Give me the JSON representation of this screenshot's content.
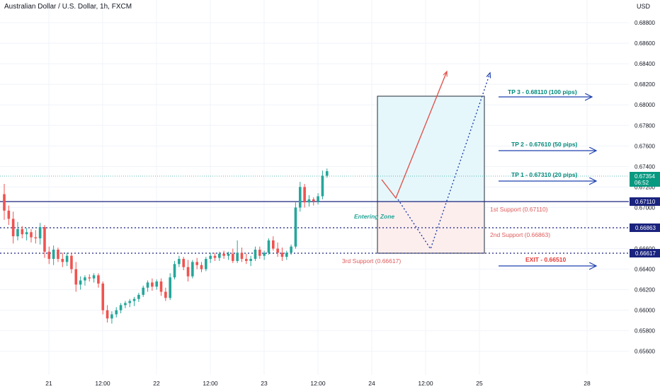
{
  "header": {
    "title": "Australian Dollar / U.S. Dollar, 1h, FXCM",
    "currency": "USD"
  },
  "colors": {
    "up": "#26a69a",
    "down": "#ef5350",
    "support_line": "#1a237e",
    "price_badge": "#089981",
    "level_badge": "#1a237e",
    "tp_text": "#00897b",
    "support_text": "#e05a5a",
    "exit_text": "#e53935",
    "arrow_blue": "#1e40af",
    "profit_zone": "#e6f7fb",
    "loss_zone": "#fdeeee"
  },
  "chart_data": {
    "type": "candlestick",
    "x_tick_labels": [
      "21",
      "12:00",
      "22",
      "12:00",
      "23",
      "12:00",
      "24",
      "12:00",
      "25",
      "28"
    ],
    "y_tick_labels": [
      "0.68800",
      "0.68600",
      "0.68400",
      "0.68200",
      "0.68000",
      "0.67800",
      "0.67600",
      "0.67400",
      "0.67200",
      "0.67000",
      "0.66800",
      "0.66600",
      "0.66400",
      "0.66200",
      "0.66000",
      "0.65800",
      "0.65600"
    ],
    "ylim": [
      0.6547,
      0.6897
    ],
    "current_price": "0.67354",
    "countdown": "06:52",
    "candles": [
      {
        "o": 0.6713,
        "h": 0.6723,
        "l": 0.6688,
        "c": 0.6697
      },
      {
        "o": 0.6697,
        "h": 0.6702,
        "l": 0.6683,
        "c": 0.6689
      },
      {
        "o": 0.6689,
        "h": 0.6696,
        "l": 0.6665,
        "c": 0.6672
      },
      {
        "o": 0.6672,
        "h": 0.6686,
        "l": 0.6668,
        "c": 0.6679
      },
      {
        "o": 0.6679,
        "h": 0.6682,
        "l": 0.667,
        "c": 0.6674
      },
      {
        "o": 0.6674,
        "h": 0.668,
        "l": 0.6668,
        "c": 0.6676
      },
      {
        "o": 0.6676,
        "h": 0.6679,
        "l": 0.6666,
        "c": 0.6671
      },
      {
        "o": 0.6671,
        "h": 0.6678,
        "l": 0.6665,
        "c": 0.667
      },
      {
        "o": 0.667,
        "h": 0.6685,
        "l": 0.6664,
        "c": 0.6681
      },
      {
        "o": 0.6681,
        "h": 0.6683,
        "l": 0.6651,
        "c": 0.6657
      },
      {
        "o": 0.6657,
        "h": 0.6662,
        "l": 0.6645,
        "c": 0.665
      },
      {
        "o": 0.665,
        "h": 0.6663,
        "l": 0.6644,
        "c": 0.6659
      },
      {
        "o": 0.6659,
        "h": 0.6661,
        "l": 0.6647,
        "c": 0.665
      },
      {
        "o": 0.665,
        "h": 0.6656,
        "l": 0.6642,
        "c": 0.6647
      },
      {
        "o": 0.6647,
        "h": 0.6656,
        "l": 0.6643,
        "c": 0.6653
      },
      {
        "o": 0.6653,
        "h": 0.6656,
        "l": 0.6636,
        "c": 0.664
      },
      {
        "o": 0.664,
        "h": 0.6647,
        "l": 0.6618,
        "c": 0.6625
      },
      {
        "o": 0.6625,
        "h": 0.6633,
        "l": 0.662,
        "c": 0.6629
      },
      {
        "o": 0.6629,
        "h": 0.6634,
        "l": 0.6624,
        "c": 0.6632
      },
      {
        "o": 0.6632,
        "h": 0.6635,
        "l": 0.6628,
        "c": 0.6631
      },
      {
        "o": 0.6631,
        "h": 0.6636,
        "l": 0.6627,
        "c": 0.6634
      },
      {
        "o": 0.6634,
        "h": 0.6636,
        "l": 0.6622,
        "c": 0.6626
      },
      {
        "o": 0.6626,
        "h": 0.6628,
        "l": 0.6596,
        "c": 0.66
      },
      {
        "o": 0.66,
        "h": 0.6605,
        "l": 0.6588,
        "c": 0.6592
      },
      {
        "o": 0.6592,
        "h": 0.6599,
        "l": 0.6587,
        "c": 0.6596
      },
      {
        "o": 0.6596,
        "h": 0.6603,
        "l": 0.6593,
        "c": 0.66
      },
      {
        "o": 0.66,
        "h": 0.6607,
        "l": 0.6597,
        "c": 0.6605
      },
      {
        "o": 0.6605,
        "h": 0.6609,
        "l": 0.6602,
        "c": 0.6607
      },
      {
        "o": 0.6607,
        "h": 0.6611,
        "l": 0.6603,
        "c": 0.6609
      },
      {
        "o": 0.6609,
        "h": 0.6613,
        "l": 0.6604,
        "c": 0.6611
      },
      {
        "o": 0.6611,
        "h": 0.6617,
        "l": 0.6608,
        "c": 0.6615
      },
      {
        "o": 0.6615,
        "h": 0.6624,
        "l": 0.6613,
        "c": 0.6622
      },
      {
        "o": 0.6622,
        "h": 0.6629,
        "l": 0.6618,
        "c": 0.6627
      },
      {
        "o": 0.6627,
        "h": 0.6631,
        "l": 0.6619,
        "c": 0.6623
      },
      {
        "o": 0.6623,
        "h": 0.663,
        "l": 0.662,
        "c": 0.6628
      },
      {
        "o": 0.6628,
        "h": 0.6631,
        "l": 0.6614,
        "c": 0.6618
      },
      {
        "o": 0.6618,
        "h": 0.6622,
        "l": 0.6609,
        "c": 0.6612
      },
      {
        "o": 0.6612,
        "h": 0.6636,
        "l": 0.661,
        "c": 0.6632
      },
      {
        "o": 0.6632,
        "h": 0.6648,
        "l": 0.663,
        "c": 0.6645
      },
      {
        "o": 0.6645,
        "h": 0.6653,
        "l": 0.6642,
        "c": 0.665
      },
      {
        "o": 0.665,
        "h": 0.6652,
        "l": 0.6639,
        "c": 0.6642
      },
      {
        "o": 0.6642,
        "h": 0.6649,
        "l": 0.6628,
        "c": 0.6633
      },
      {
        "o": 0.6633,
        "h": 0.6649,
        "l": 0.6631,
        "c": 0.6647
      },
      {
        "o": 0.6647,
        "h": 0.6651,
        "l": 0.664,
        "c": 0.6644
      },
      {
        "o": 0.6644,
        "h": 0.6647,
        "l": 0.6637,
        "c": 0.664
      },
      {
        "o": 0.664,
        "h": 0.6652,
        "l": 0.6638,
        "c": 0.665
      },
      {
        "o": 0.665,
        "h": 0.6656,
        "l": 0.6646,
        "c": 0.6653
      },
      {
        "o": 0.6653,
        "h": 0.6656,
        "l": 0.6648,
        "c": 0.6651
      },
      {
        "o": 0.6651,
        "h": 0.6657,
        "l": 0.6648,
        "c": 0.6655
      },
      {
        "o": 0.6655,
        "h": 0.6658,
        "l": 0.665,
        "c": 0.6653
      },
      {
        "o": 0.6653,
        "h": 0.6657,
        "l": 0.6649,
        "c": 0.6655
      },
      {
        "o": 0.6655,
        "h": 0.666,
        "l": 0.6646,
        "c": 0.6648
      },
      {
        "o": 0.6648,
        "h": 0.6668,
        "l": 0.6646,
        "c": 0.6656
      },
      {
        "o": 0.6656,
        "h": 0.6661,
        "l": 0.6647,
        "c": 0.665
      },
      {
        "o": 0.665,
        "h": 0.6655,
        "l": 0.6645,
        "c": 0.6648
      },
      {
        "o": 0.6648,
        "h": 0.6653,
        "l": 0.6643,
        "c": 0.665
      },
      {
        "o": 0.665,
        "h": 0.6662,
        "l": 0.6648,
        "c": 0.6659
      },
      {
        "o": 0.6659,
        "h": 0.6662,
        "l": 0.665,
        "c": 0.6653
      },
      {
        "o": 0.6653,
        "h": 0.6658,
        "l": 0.6649,
        "c": 0.6656
      },
      {
        "o": 0.6656,
        "h": 0.667,
        "l": 0.6654,
        "c": 0.6668
      },
      {
        "o": 0.6668,
        "h": 0.6672,
        "l": 0.6658,
        "c": 0.666
      },
      {
        "o": 0.666,
        "h": 0.6666,
        "l": 0.6652,
        "c": 0.6656
      },
      {
        "o": 0.6656,
        "h": 0.6661,
        "l": 0.6648,
        "c": 0.6652
      },
      {
        "o": 0.6652,
        "h": 0.6658,
        "l": 0.6649,
        "c": 0.6656
      },
      {
        "o": 0.6656,
        "h": 0.6664,
        "l": 0.6654,
        "c": 0.6662
      },
      {
        "o": 0.6662,
        "h": 0.6705,
        "l": 0.666,
        "c": 0.67
      },
      {
        "o": 0.67,
        "h": 0.6725,
        "l": 0.6696,
        "c": 0.672
      },
      {
        "o": 0.672,
        "h": 0.6723,
        "l": 0.67,
        "c": 0.6705
      },
      {
        "o": 0.6705,
        "h": 0.6712,
        "l": 0.6701,
        "c": 0.6708
      },
      {
        "o": 0.6708,
        "h": 0.671,
        "l": 0.6702,
        "c": 0.6706
      },
      {
        "o": 0.6706,
        "h": 0.6714,
        "l": 0.6703,
        "c": 0.6711
      },
      {
        "o": 0.6711,
        "h": 0.6736,
        "l": 0.6708,
        "c": 0.6731
      },
      {
        "o": 0.6731,
        "h": 0.6738,
        "l": 0.6729,
        "c": 0.67354
      }
    ],
    "levels": [
      {
        "price": 0.6711,
        "badge": "0.67110",
        "style": "solid"
      },
      {
        "price": 0.66863,
        "badge": "0.66863",
        "style": "dotted"
      },
      {
        "price": 0.66617,
        "badge": "0.66617",
        "style": "dotted"
      }
    ],
    "annotations": {
      "tp3": "TP 3 - 0.68110 (100 pips)",
      "tp2": "TP 2 - 0.67610 (50 pips)",
      "tp1": "TP 1 - 0.67310 (20 pips)",
      "support1": "1st Support (0.67110)",
      "support2": "2nd Support (0.66863)",
      "support3": "3rd Support (0.66617)",
      "exit": "EXIT - 0.66510",
      "entering_zone": "Entering Zone"
    }
  }
}
